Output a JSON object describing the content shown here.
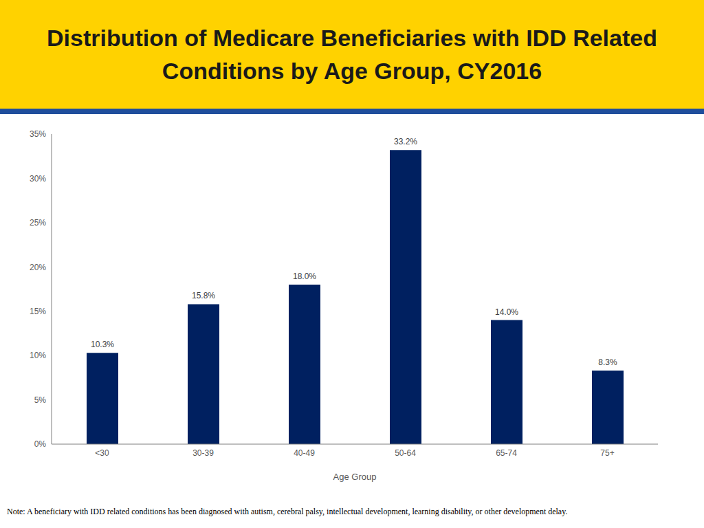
{
  "chart_data": {
    "type": "bar",
    "title": "Distribution of Medicare Beneficiaries with IDD Related Conditions by Age Group, CY2016",
    "x_label": "Age Group",
    "categories": [
      "<30",
      "30-39",
      "40-49",
      "50-64",
      "65-74",
      "75+"
    ],
    "values": [
      10.3,
      15.8,
      18.0,
      33.2,
      14.0,
      8.3
    ],
    "value_labels": [
      "10.3%",
      "15.8%",
      "18.0%",
      "33.2%",
      "14.0%",
      "8.3%"
    ],
    "data_labels": true,
    "color": "#002060",
    "ylim": [
      0,
      35
    ],
    "yticks": [
      {
        "value": 0,
        "label": "0%"
      },
      {
        "value": 5,
        "label": "5%"
      },
      {
        "value": 10,
        "label": "10%"
      },
      {
        "value": 15,
        "label": "15%"
      },
      {
        "value": 20,
        "label": "20%"
      },
      {
        "value": 25,
        "label": "25%"
      },
      {
        "value": 30,
        "label": "30%"
      },
      {
        "value": 35,
        "label": "35%"
      }
    ],
    "grid": false,
    "note": "Note: A beneficiary with IDD related conditions has been diagnosed with autism, cerebral palsy, intellectual development, learning disability, or other development delay."
  }
}
